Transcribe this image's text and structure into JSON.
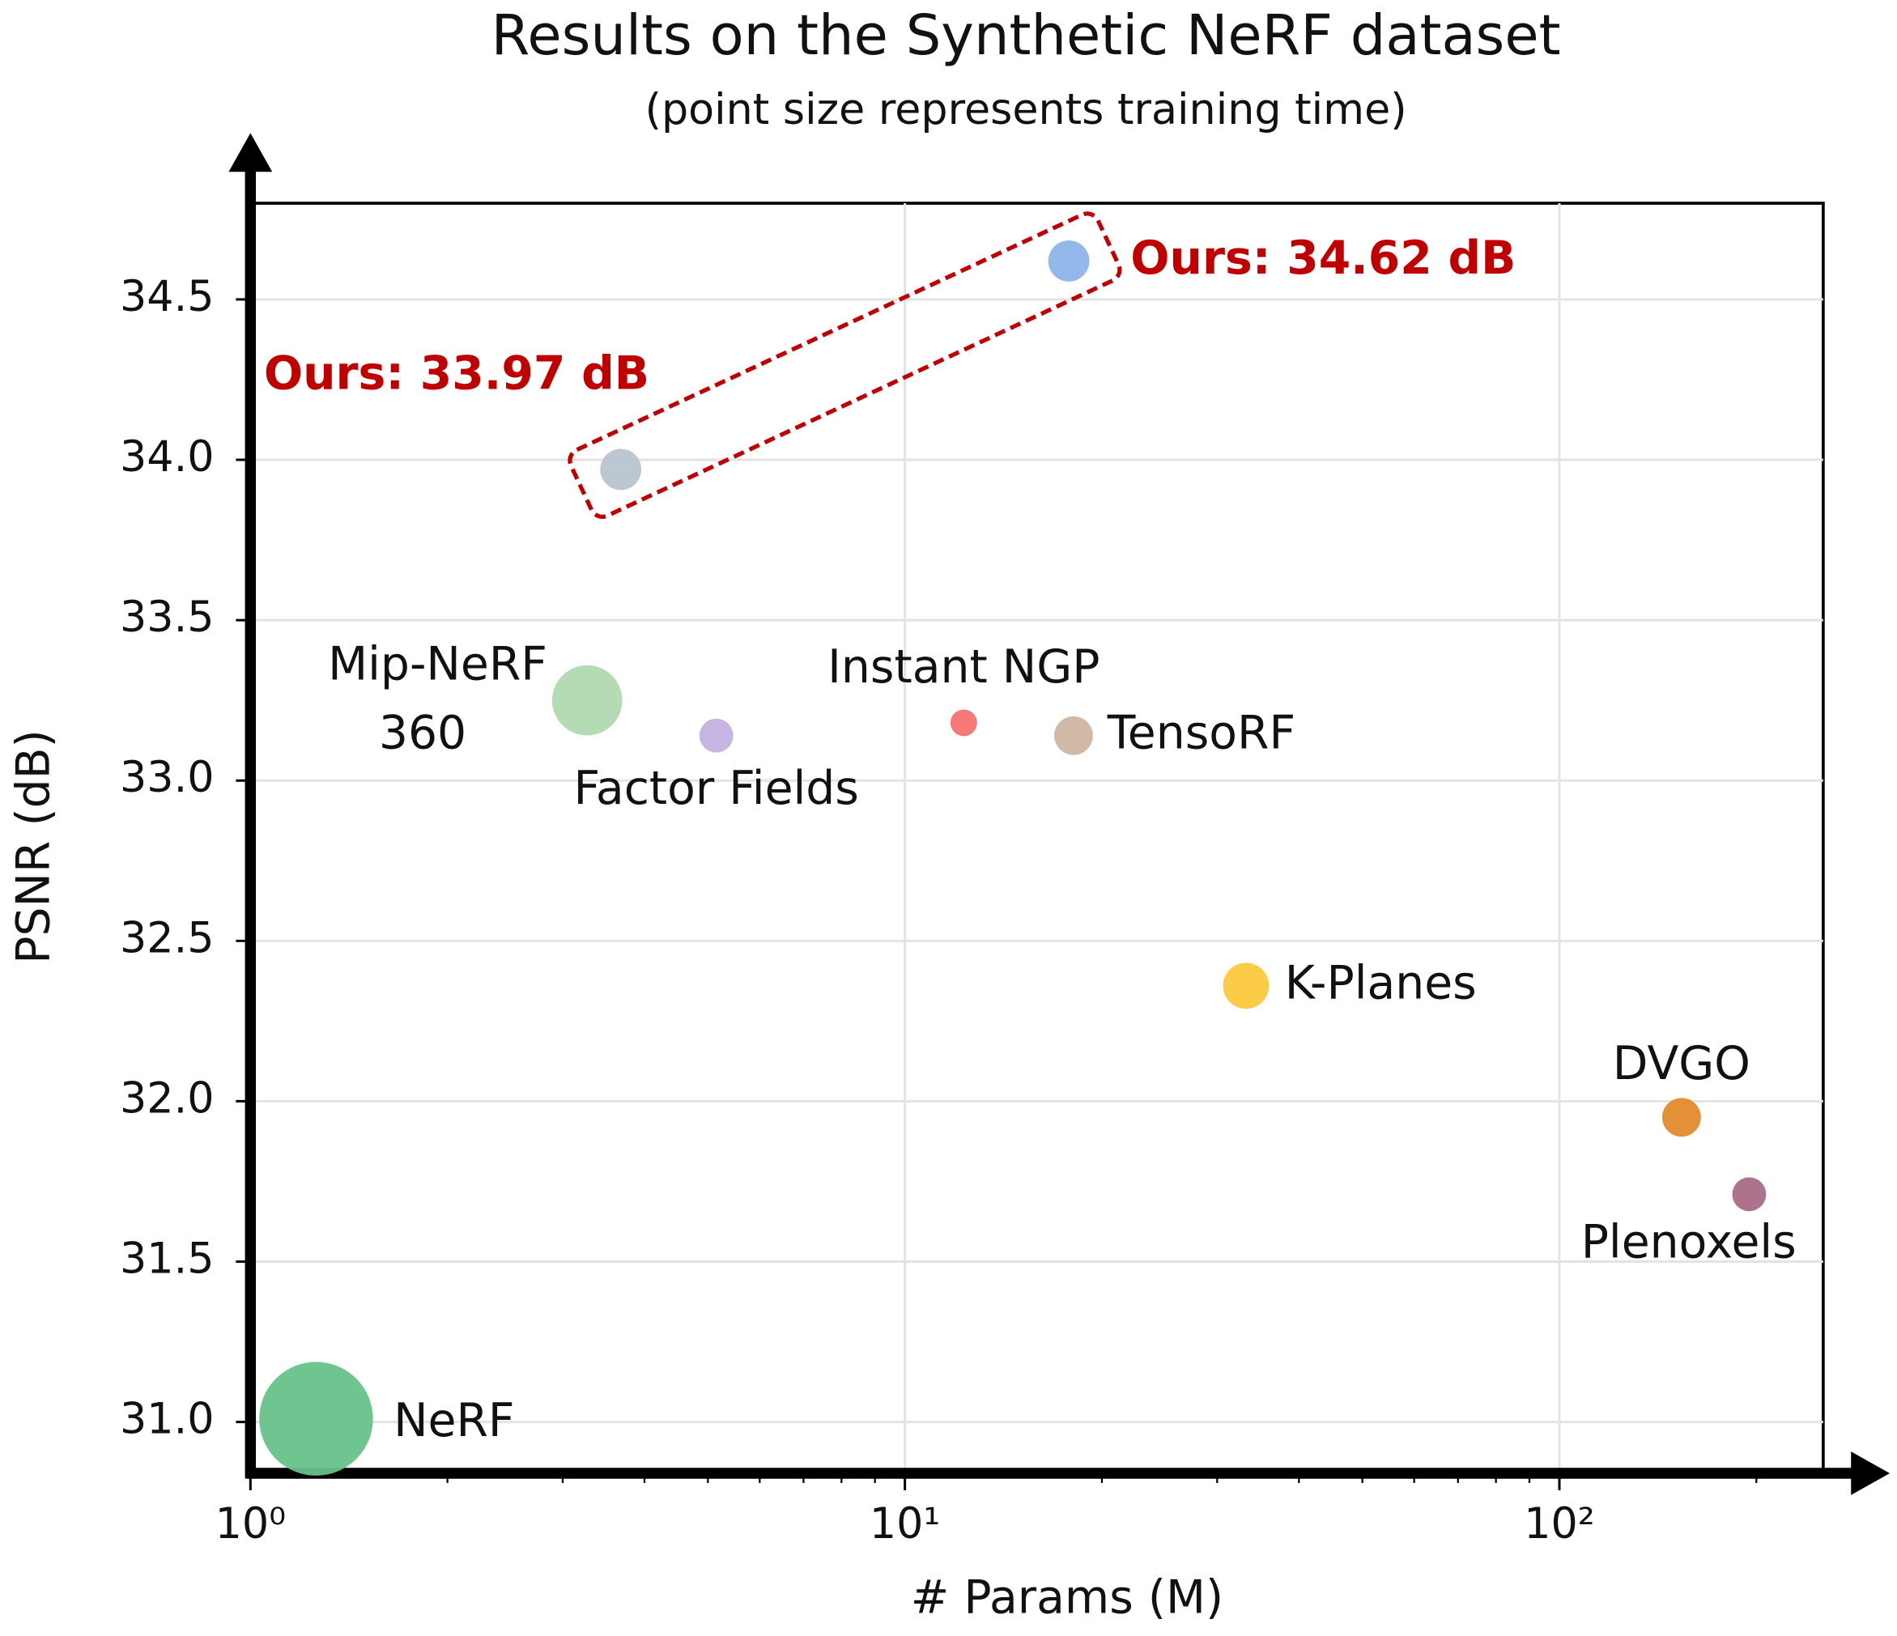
{
  "chart_data": {
    "type": "scatter",
    "title": "Results on the Synthetic NeRF dataset",
    "subtitle": "(point size represents training time)",
    "x_label": "# Params (M)",
    "y_label": "PSNR (dB)",
    "xscale": "log",
    "xlim": [
      1,
      253
    ],
    "ylim": [
      30.84,
      34.8
    ],
    "xticks": [
      {
        "value": 1,
        "label": "10⁰"
      },
      {
        "value": 10,
        "label": "10¹"
      },
      {
        "value": 100,
        "label": "10²"
      }
    ],
    "xminorticks": [
      2,
      3,
      4,
      5,
      6,
      7,
      8,
      9,
      20,
      30,
      40,
      50,
      60,
      70,
      80,
      90,
      200
    ],
    "yticks": [
      {
        "value": 31,
        "label": "31.0"
      },
      31.5,
      {
        "value": 32,
        "label": "32.0"
      },
      32.5,
      {
        "value": 33,
        "label": "33.0"
      },
      33.5,
      {
        "value": 34,
        "label": "34.0"
      },
      34.5
    ],
    "grid": true,
    "highlight_color": "#c00000",
    "series": [
      {
        "name": "NeRF",
        "color": "#66c28a",
        "x": [
          1.26
        ],
        "values": [
          31.01
        ],
        "sizes": [
          2209
        ]
      },
      {
        "name": "Mip-NeRF 360",
        "color": "#b0d9b0",
        "x": [
          3.27
        ],
        "values": [
          33.25
        ],
        "sizes": [
          841
        ]
      },
      {
        "name": "Ours: 33.97 dB",
        "color": "#b8c4cf",
        "x": [
          3.68
        ],
        "values": [
          33.97
        ],
        "sizes": [
          289
        ],
        "highlight": true
      },
      {
        "name": "Factor Fields",
        "color": "#c3b1e1",
        "x": [
          5.15
        ],
        "values": [
          33.14
        ],
        "sizes": [
          196
        ]
      },
      {
        "name": "Instant NGP",
        "color": "#f87171",
        "x": [
          12.3
        ],
        "values": [
          33.18
        ],
        "sizes": [
          121
        ]
      },
      {
        "name": "TensoRF",
        "color": "#cdb5a1",
        "x": [
          18.1
        ],
        "values": [
          33.14
        ],
        "sizes": [
          256
        ]
      },
      {
        "name": "Ours: 34.62 dB",
        "color": "#8fb4ea",
        "x": [
          17.8
        ],
        "values": [
          34.62
        ],
        "sizes": [
          289
        ],
        "highlight": true
      },
      {
        "name": "K-Planes",
        "color": "#fcc93f",
        "x": [
          33.2
        ],
        "values": [
          32.36
        ],
        "sizes": [
          361
        ]
      },
      {
        "name": "DVGO",
        "color": "#e38a2b",
        "x": [
          153.7
        ],
        "values": [
          31.95
        ],
        "sizes": [
          256
        ]
      },
      {
        "name": "Plenoxels",
        "color": "#a96a86",
        "x": [
          195
        ],
        "values": [
          31.71
        ],
        "sizes": [
          196
        ]
      }
    ]
  }
}
